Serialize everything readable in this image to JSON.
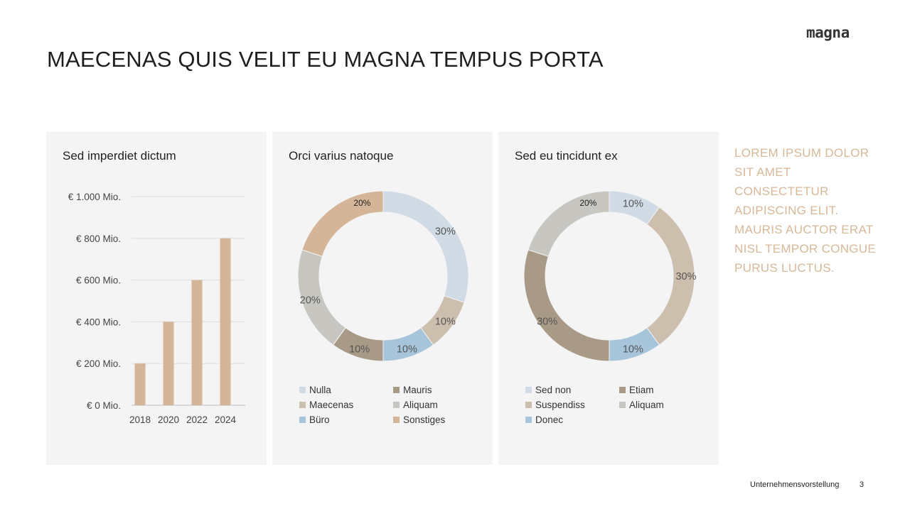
{
  "title": "MAECENAS QUIS VELIT EU MAGNA TEMPUS PORTA",
  "logo": "magna",
  "side_text": "LOREM IPSUM DOLOR SIT AMET CONSECTETUR ADIPISCING ELIT. MAURIS AUCTOR ERAT NISL TEMPOR CONGUE PURUS LUCTUS.",
  "footer": {
    "label": "Unternehmensvorstellung",
    "page": "3"
  },
  "chart_data": [
    {
      "type": "bar",
      "title": "Sed imperdiet dictum",
      "categories": [
        "2018",
        "2020",
        "2022",
        "2024"
      ],
      "values": [
        200,
        400,
        600,
        800
      ],
      "ylim": [
        0,
        1000
      ],
      "yticks": [
        0,
        200,
        400,
        600,
        800,
        1000
      ],
      "ytick_labels": [
        "€ 0 Mio.",
        "€ 200 Mio.",
        "€ 400 Mio.",
        "€ 600 Mio.",
        "€ 800 Mio.",
        "€ 1.000 Mio."
      ],
      "grid": true,
      "color": "#d5b598"
    },
    {
      "type": "pie",
      "donut": true,
      "title": "Orci varius natoque",
      "legend": "bottom",
      "slices": [
        {
          "label": "Nulla",
          "value": 30,
          "text": "30%",
          "color": "#d1dbe5"
        },
        {
          "label": "Maecenas",
          "value": 10,
          "text": "10%",
          "color": "#cdbfae"
        },
        {
          "label": "Büro",
          "value": 10,
          "text": "10%",
          "color": "#a6c4da"
        },
        {
          "label": "Mauris",
          "value": 10,
          "text": "10%",
          "color": "#a89a87"
        },
        {
          "label": "Aliquam",
          "value": 20,
          "text": "20%",
          "color": "#c8c6c0"
        },
        {
          "label": "Sonstiges",
          "value": 20,
          "text": "20%",
          "color": "#d5b598"
        }
      ]
    },
    {
      "type": "pie",
      "donut": true,
      "title": "Sed eu tincidunt ex",
      "legend": "bottom",
      "slices": [
        {
          "label": "Sed non",
          "value": 10,
          "text": "10%",
          "color": "#d1dbe5"
        },
        {
          "label": "Suspendiss",
          "value": 30,
          "text": "30%",
          "color": "#cdbfae"
        },
        {
          "label": "Donec",
          "value": 10,
          "text": "10%",
          "color": "#a6c4da"
        },
        {
          "label": "Etiam",
          "value": 30,
          "text": "30%",
          "color": "#a89a87"
        },
        {
          "label": "Aliquam",
          "value": 20,
          "text": "20%",
          "color": "#c8c6c0"
        }
      ]
    }
  ]
}
